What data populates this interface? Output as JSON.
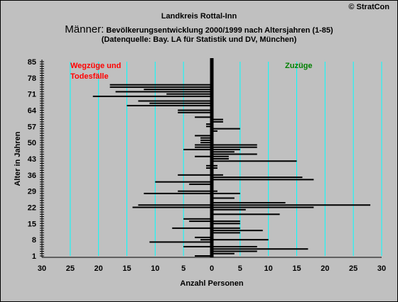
{
  "header": {
    "copyright": "© StratCon",
    "title": "Landkreis Rottal-Inn",
    "subtitle_prefix": "Männer:",
    "subtitle_rest": " Bevölkerungsentwicklung 2000/1999  nach Altersjahren (1-85)",
    "source": "(Datenquelle: Bay. LA für Statistik und DV, München)"
  },
  "colors": {
    "background": "#c0c0c0",
    "gridline": "#00ffff",
    "bar": "#000000",
    "left_annotation": "#ff0000",
    "right_annotation": "#008000"
  },
  "chart_data": {
    "type": "bar",
    "orientation": "horizontal",
    "title": "Landkreis Rottal-Inn",
    "xlabel": "Anzahl Personen",
    "ylabel": "Alter in Jahren",
    "xlim": [
      -30,
      30
    ],
    "ylim": [
      1,
      85
    ],
    "x_ticks": [
      30,
      25,
      20,
      15,
      10,
      5,
      0,
      5,
      10,
      15,
      20,
      25,
      30
    ],
    "y_ticks": [
      1,
      8,
      15,
      22,
      29,
      36,
      43,
      50,
      57,
      64,
      71,
      78,
      85
    ],
    "grid": true,
    "annotations": {
      "left": [
        "Wegzüge und",
        "Todesfälle"
      ],
      "right": "Zuzüge"
    },
    "series": [
      {
        "name": "Wegzüge und Todesfälle",
        "side": "left",
        "values": [
          3,
          0,
          0,
          0,
          5,
          0,
          11,
          2,
          3,
          0,
          0,
          0,
          7,
          0,
          0,
          4,
          5,
          0,
          0,
          0,
          0,
          14,
          13,
          0,
          0,
          0,
          0,
          12,
          6,
          0,
          0,
          4,
          10,
          0,
          0,
          6,
          0,
          0,
          1,
          1,
          0,
          0,
          0,
          3,
          0,
          0,
          5,
          3,
          3,
          2,
          2,
          2,
          3,
          0,
          0,
          0,
          1,
          1,
          0,
          0,
          3,
          0,
          6,
          6,
          0,
          15,
          11,
          13,
          0,
          21,
          8,
          17,
          12,
          18,
          18,
          0,
          0,
          0,
          0,
          0,
          0,
          0,
          0,
          0,
          0
        ]
      },
      {
        "name": "Zuzüge",
        "side": "right",
        "values": [
          0,
          4,
          8,
          17,
          8,
          0,
          0,
          10,
          0,
          0,
          5,
          9,
          5,
          0,
          5,
          5,
          0,
          0,
          12,
          0,
          6,
          18,
          28,
          13,
          0,
          4,
          0,
          5,
          1,
          0,
          0,
          0,
          0,
          18,
          16,
          2,
          0,
          0,
          1,
          1,
          0,
          15,
          3,
          3,
          8,
          4,
          5,
          8,
          8,
          0,
          0,
          0,
          0,
          0,
          1,
          5,
          0,
          0,
          2,
          2,
          0,
          0,
          0,
          0,
          0,
          0,
          0,
          0,
          0,
          0,
          0,
          0,
          0,
          0,
          0,
          0,
          0,
          0,
          0,
          0,
          0,
          0,
          0,
          0,
          0
        ]
      }
    ]
  }
}
